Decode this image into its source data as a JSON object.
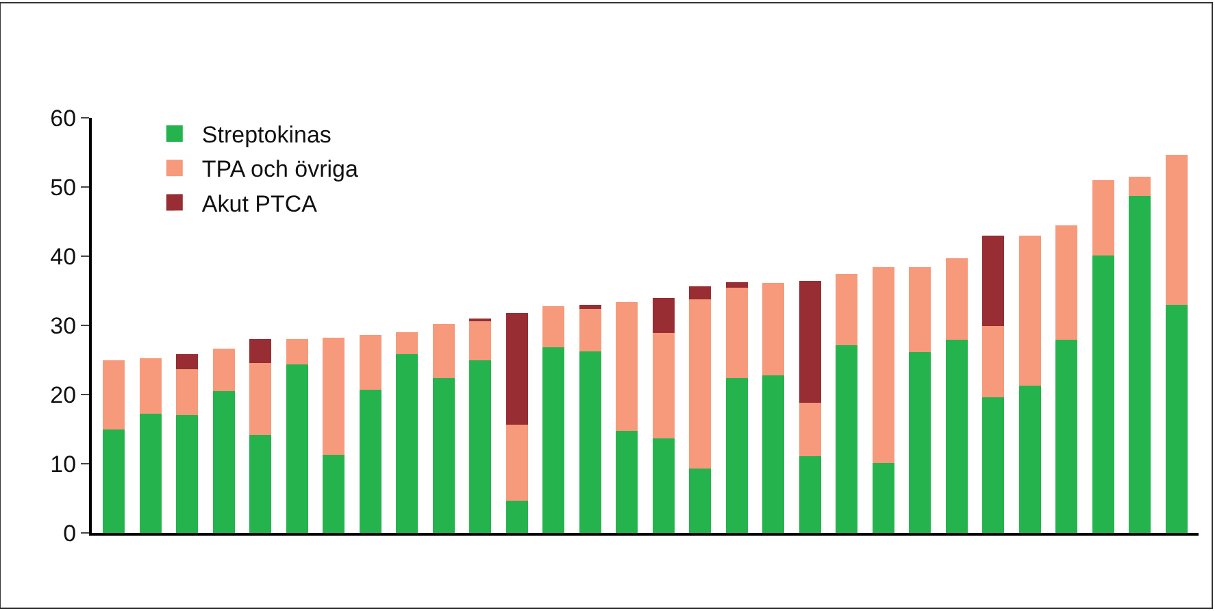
{
  "chart_data": {
    "type": "bar",
    "stacked": true,
    "categories": [
      null,
      null,
      null,
      null,
      null,
      null,
      null,
      null,
      null,
      null,
      null,
      null,
      null,
      null,
      null,
      null,
      null,
      null,
      null,
      null,
      null,
      null,
      null,
      null,
      null,
      null,
      null,
      null,
      null,
      null
    ],
    "series": [
      {
        "name": "Streptokinas",
        "color": "#25b34d",
        "values": [
          15,
          17.2,
          17,
          20.5,
          14.2,
          24.4,
          11.3,
          20.7,
          25.8,
          22.4,
          25,
          4.7,
          26.8,
          26.2,
          14.8,
          13.7,
          9.3,
          22.4,
          22.8,
          11.1,
          27.1,
          10.1,
          26.1,
          27.9,
          19.6,
          21.3,
          27.9,
          40.1,
          48.7,
          33
        ]
      },
      {
        "name": "TPA och övriga",
        "color": "#f69a7b",
        "values": [
          10,
          8,
          6.7,
          6.1,
          10.4,
          3.6,
          16.9,
          7.9,
          3.2,
          7.8,
          5.6,
          10.9,
          6,
          6.2,
          18.6,
          15.2,
          24.5,
          13,
          13.3,
          7.7,
          10.3,
          28.3,
          12.3,
          11.8,
          10.3,
          21.7,
          16.6,
          10.9,
          2.8,
          21.7
        ]
      },
      {
        "name": "Akut PTCA",
        "color": "#982d33",
        "values": [
          null,
          null,
          2.1,
          null,
          3.4,
          null,
          null,
          null,
          null,
          null,
          0.4,
          16.2,
          null,
          0.6,
          null,
          5.1,
          1.8,
          0.8,
          null,
          17.6,
          null,
          null,
          null,
          null,
          13.1,
          null,
          null,
          null,
          null,
          null
        ]
      }
    ],
    "ylim": [
      0,
      60
    ],
    "yticks": [
      0,
      10,
      20,
      30,
      40,
      50,
      60
    ],
    "legend": "top left",
    "tick_labels": "y"
  }
}
